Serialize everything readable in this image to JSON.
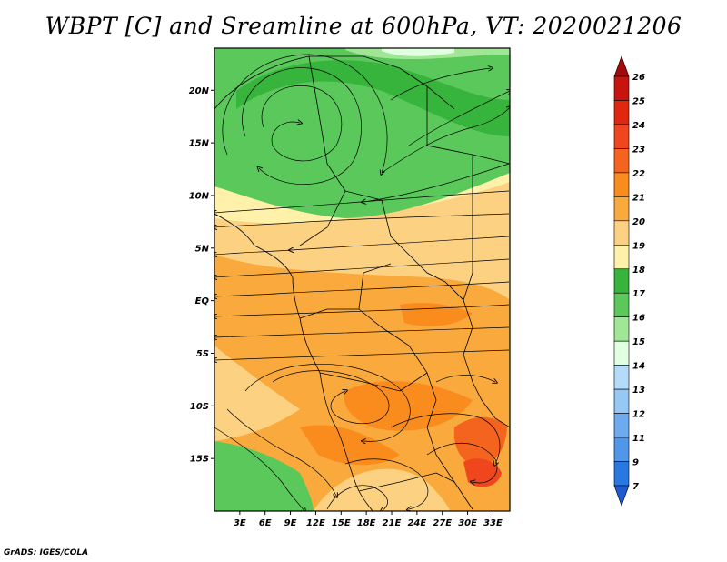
{
  "title": "WBPT [C] and Sreamline at 600hPa, VT: 2020021206",
  "credit": "GrADS: IGES/COLA",
  "map": {
    "projection": "lat-lon",
    "lon_range": [
      0,
      35
    ],
    "lat_range": [
      -20,
      24
    ],
    "lat_ticks": [
      {
        "value": 20,
        "label": "20N"
      },
      {
        "value": 15,
        "label": "15N"
      },
      {
        "value": 10,
        "label": "10N"
      },
      {
        "value": 5,
        "label": "5N"
      },
      {
        "value": 0,
        "label": "EQ"
      },
      {
        "value": -5,
        "label": "5S"
      },
      {
        "value": -10,
        "label": "10S"
      },
      {
        "value": -15,
        "label": "15S"
      }
    ],
    "lon_ticks": [
      {
        "value": 3,
        "label": "3E"
      },
      {
        "value": 6,
        "label": "6E"
      },
      {
        "value": 9,
        "label": "9E"
      },
      {
        "value": 12,
        "label": "12E"
      },
      {
        "value": 15,
        "label": "15E"
      },
      {
        "value": 18,
        "label": "18E"
      },
      {
        "value": 21,
        "label": "21E"
      },
      {
        "value": 24,
        "label": "24E"
      },
      {
        "value": 27,
        "label": "27E"
      },
      {
        "value": 30,
        "label": "30E"
      },
      {
        "value": 33,
        "label": "33E"
      }
    ],
    "fields": [
      "shaded wet-bulb potential temperature",
      "streamlines"
    ]
  },
  "colorbar": {
    "orientation": "vertical",
    "levels": [
      {
        "label": "26",
        "color": "#a50a0a"
      },
      {
        "label": "25",
        "color": "#c8140f"
      },
      {
        "label": "24",
        "color": "#e1280f"
      },
      {
        "label": "23",
        "color": "#f0461e"
      },
      {
        "label": "22",
        "color": "#f5641e"
      },
      {
        "label": "21",
        "color": "#fa8c1e"
      },
      {
        "label": "20",
        "color": "#faaa3c"
      },
      {
        "label": "19",
        "color": "#fcd282"
      },
      {
        "label": "18",
        "color": "#fff0aa"
      },
      {
        "label": "17",
        "color": "#37b43c"
      },
      {
        "label": "16",
        "color": "#5ac85a"
      },
      {
        "label": "15",
        "color": "#a0e696"
      },
      {
        "label": "14",
        "color": "#e1ffe1"
      },
      {
        "label": "13",
        "color": "#b4dcfa"
      },
      {
        "label": "12",
        "color": "#96c8f5"
      },
      {
        "label": "11",
        "color": "#6eaaf0"
      },
      {
        "label": "9",
        "color": "#5096eb"
      },
      {
        "label": "7",
        "color": "#2878e1"
      }
    ],
    "under_color": "#1e5ad2"
  }
}
